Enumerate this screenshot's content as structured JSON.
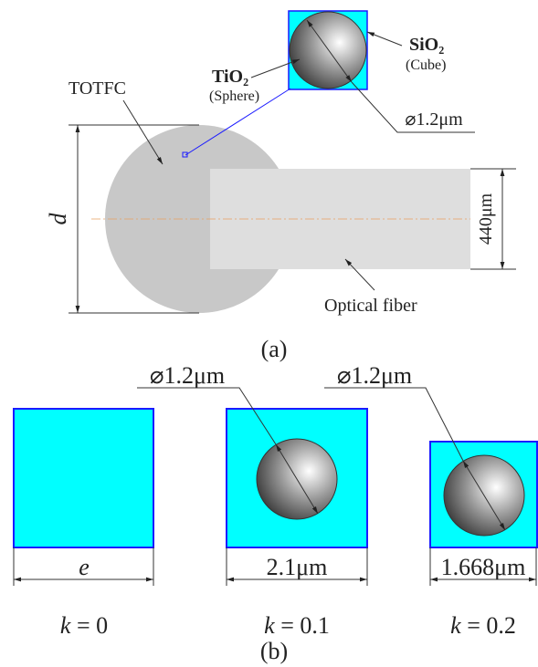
{
  "panel_a": {
    "labels": {
      "totfc": "TOTFC",
      "tio2": "TiO₂",
      "sphere": "(Sphere)",
      "sio2": "SiO₂",
      "cube": "(Cube)",
      "diameter": "⌀1.2μm",
      "d": "d",
      "fiber_width": "440μm",
      "fiber": "Optical fiber"
    },
    "caption": "(a)"
  },
  "panel_b": {
    "diameters": [
      "⌀1.2μm",
      "⌀1.2μm"
    ],
    "widths": [
      "e",
      "2.1μm",
      "1.668μm"
    ],
    "cases": [
      {
        "symbol": "k",
        "rest": " = 0"
      },
      {
        "symbol": "k",
        "rest": " = 0.1"
      },
      {
        "symbol": "k",
        "rest": " = 0.2"
      }
    ],
    "caption": "(b)"
  }
}
